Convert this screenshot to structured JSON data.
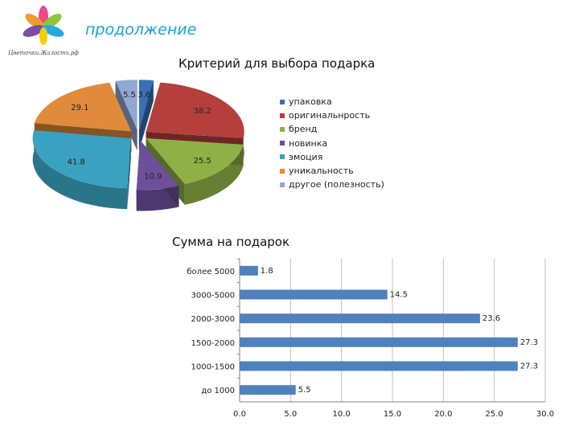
{
  "header": {
    "subtitle": "продолжение",
    "logo_text": "Цветочки.Жалость.рф"
  },
  "colors": {
    "pie": [
      "#3b6fb4",
      "#b53f3c",
      "#8fb046",
      "#6d4f9a",
      "#3aa2c0",
      "#e08a3c",
      "#93a7d3"
    ],
    "bar": "#4f81bd"
  },
  "chart_data": [
    {
      "type": "pie",
      "title": "Критерий для выбора подарка",
      "labels": [
        "упаковка",
        "оригинальнрость",
        "бренд",
        "новинка",
        "эмоция",
        "уникальность",
        "другое (полезность)"
      ],
      "values": [
        3.6,
        38.2,
        25.5,
        10.9,
        41.8,
        29.1,
        5.5
      ],
      "value_labels": [
        "3.6",
        "38.2",
        "25.5",
        "10.9",
        "41.8",
        "29.1",
        "5.5"
      ],
      "legend": "right"
    },
    {
      "type": "bar",
      "orientation": "horizontal",
      "title": "Сумма на подарок",
      "categories": [
        "более 5000",
        "3000-5000",
        "2000-3000",
        "1500-2000",
        "1000-1500",
        "до 1000"
      ],
      "values": [
        1.8,
        14.5,
        23.6,
        27.3,
        27.3,
        5.5
      ],
      "xlim": [
        0,
        30
      ],
      "xticks": [
        "0.0",
        "5.0",
        "10.0",
        "15.0",
        "20.0",
        "25.0",
        "30.0"
      ],
      "grid": true
    }
  ]
}
